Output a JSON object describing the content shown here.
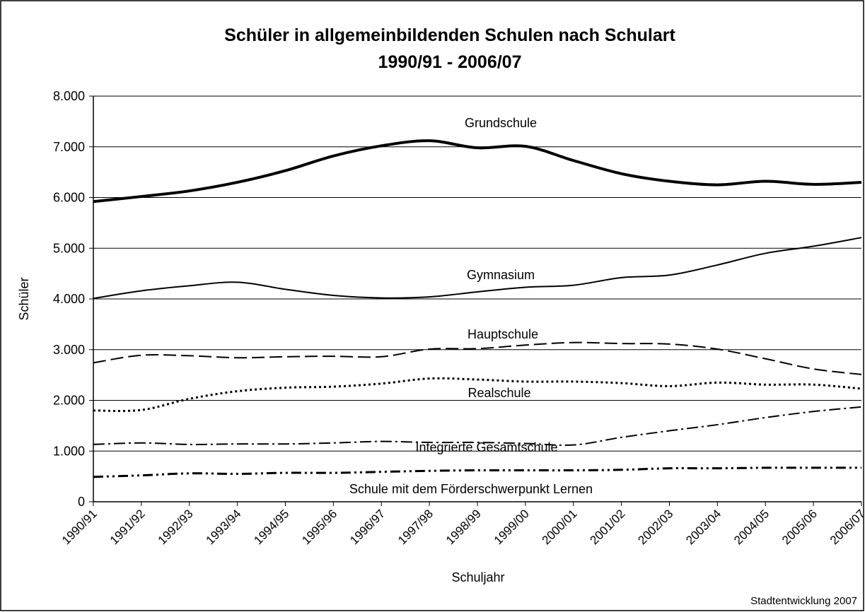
{
  "chart_data": {
    "type": "line",
    "title": "Schüler in allgemeinbildenden Schulen nach Schulart",
    "subtitle": "1990/91 - 2006/07",
    "x_label": "Schuljahr",
    "y_label": "Schüler",
    "source": "Stadtentwicklung 2007",
    "categories": [
      "1990/91",
      "1991/92",
      "1992/93",
      "1993/94",
      "1994/95",
      "1995/96",
      "1996/97",
      "1997/98",
      "1998/99",
      "1999/00",
      "2000/01",
      "2001/02",
      "2002/03",
      "2003/04",
      "2004/05",
      "2005/06",
      "2006/07"
    ],
    "ylim": [
      0,
      8000
    ],
    "yticks": [
      0,
      {
        "value": 1000,
        "label": "1.000"
      },
      {
        "value": 2000,
        "label": "2.000"
      },
      {
        "value": 3000,
        "label": "3.000"
      },
      {
        "value": 4000,
        "label": "4.000"
      },
      {
        "value": 5000,
        "label": "5.000"
      },
      {
        "value": 6000,
        "label": "6.000"
      },
      {
        "value": 7000,
        "label": "7.000"
      },
      {
        "value": 8000,
        "label": "8.000"
      }
    ],
    "grid": true,
    "series": [
      {
        "name": "Grundschule",
        "color": "#000000",
        "line_style": "solid",
        "line_width": 4,
        "values": [
          5920,
          6020,
          6130,
          6300,
          6530,
          6820,
          7020,
          7120,
          6980,
          7010,
          6730,
          6470,
          6320,
          6250,
          6320,
          6260,
          6300
        ]
      },
      {
        "name": "Gymnasium",
        "color": "#000000",
        "line_style": "solid",
        "line_width": 2,
        "values": [
          4010,
          4160,
          4260,
          4330,
          4190,
          4070,
          4020,
          4040,
          4140,
          4230,
          4270,
          4420,
          4470,
          4670,
          4900,
          5040,
          5210
        ]
      },
      {
        "name": "Hauptschule",
        "color": "#000000",
        "line_style": "dashed",
        "line_width": 2,
        "values": [
          2740,
          2890,
          2880,
          2840,
          2860,
          2870,
          2860,
          3010,
          3020,
          3090,
          3140,
          3120,
          3110,
          3010,
          2820,
          2620,
          2510
        ]
      },
      {
        "name": "Realschule",
        "color": "#000000",
        "line_style": "dotted",
        "line_width": 3,
        "values": [
          1800,
          1810,
          2030,
          2180,
          2250,
          2270,
          2330,
          2430,
          2410,
          2370,
          2370,
          2340,
          2280,
          2350,
          2310,
          2310,
          2230
        ]
      },
      {
        "name": "Integrierte Gesamtschule",
        "color": "#000000",
        "line_style": "dash-dot",
        "line_width": 2,
        "values": [
          1130,
          1160,
          1130,
          1140,
          1140,
          1160,
          1190,
          1170,
          1170,
          1150,
          1120,
          1270,
          1400,
          1520,
          1660,
          1780,
          1870
        ]
      },
      {
        "name": "Schule mit dem Förderschwerpunkt Lernen",
        "color": "#000000",
        "line_style": "dash-dot-dot",
        "line_width": 3,
        "values": [
          490,
          520,
          560,
          550,
          570,
          570,
          590,
          610,
          620,
          620,
          620,
          630,
          660,
          660,
          670,
          670,
          670
        ]
      }
    ]
  }
}
